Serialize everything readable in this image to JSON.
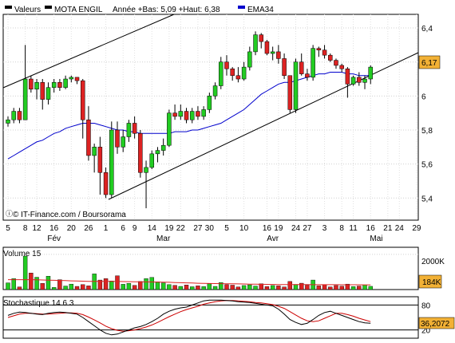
{
  "legend": {
    "item1": "Valeurs",
    "item2": "MOTA ENGIL",
    "range": "Année +Bas: 5,09 +Haut: 6,38",
    "item3": "EMA34"
  },
  "watermark": "© IT-Finance.com / Boursorama",
  "colors": {
    "up": "#22cc22",
    "down": "#dd2222",
    "ema": "#0000cc",
    "stoch_k": "#000000",
    "stoch_d": "#cc0000",
    "price_badge": "#f2b135",
    "value_badge": "#f2b135"
  },
  "chart_data": [
    {
      "type": "candlestick",
      "title": "MOTA ENGIL",
      "y_ticks": [
        "6,4",
        "6,2",
        "6",
        "5,8",
        "5,6",
        "5,4"
      ],
      "y_tick_values": [
        6.4,
        6.2,
        6.0,
        5.8,
        5.6,
        5.4
      ],
      "ylim": [
        5.27,
        6.48
      ],
      "last_price_label": "6,17",
      "last_price": 6.17,
      "x_day_labels": [
        "5",
        "8",
        "12",
        "16",
        "20",
        "26",
        "1",
        "6",
        "9",
        "14",
        "19",
        "22",
        "27",
        "30",
        "5",
        "10",
        "16",
        "19",
        "24",
        "27",
        "3",
        "8",
        "11",
        "16",
        "21",
        "24",
        "29"
      ],
      "x_day_index": [
        0,
        3,
        5,
        8,
        11,
        14,
        17,
        20,
        22,
        25,
        28,
        30,
        33,
        35,
        38,
        41,
        45,
        47,
        50,
        52,
        55,
        58,
        60,
        63,
        66,
        68,
        71
      ],
      "x_month_labels": [
        "Fév",
        "Mar",
        "Avr",
        "Mai"
      ],
      "x_month_index": [
        8,
        27,
        46,
        64
      ],
      "candles": [
        [
          5.84,
          5.88,
          5.82,
          5.86
        ],
        [
          5.86,
          5.93,
          5.84,
          5.91
        ],
        [
          5.91,
          5.93,
          5.84,
          5.86
        ],
        [
          5.86,
          6.3,
          5.86,
          6.1
        ],
        [
          6.1,
          6.12,
          6.02,
          6.04
        ],
        [
          6.04,
          6.1,
          5.98,
          6.08
        ],
        [
          6.08,
          6.1,
          5.92,
          5.98
        ],
        [
          5.98,
          6.08,
          5.95,
          6.05
        ],
        [
          6.05,
          6.1,
          6.02,
          6.08
        ],
        [
          6.08,
          6.1,
          6.03,
          6.05
        ],
        [
          6.05,
          6.12,
          6.04,
          6.1
        ],
        [
          6.1,
          6.12,
          6.08,
          6.11
        ],
        [
          6.11,
          6.11,
          6.07,
          6.09
        ],
        [
          6.09,
          6.1,
          5.75,
          5.86
        ],
        [
          5.86,
          5.94,
          5.62,
          5.65
        ],
        [
          5.65,
          5.72,
          5.55,
          5.7
        ],
        [
          5.7,
          5.76,
          5.42,
          5.55
        ],
        [
          5.55,
          5.58,
          5.4,
          5.42
        ],
        [
          5.42,
          5.85,
          5.4,
          5.8
        ],
        [
          5.8,
          5.85,
          5.66,
          5.7
        ],
        [
          5.7,
          5.8,
          5.67,
          5.76
        ],
        [
          5.76,
          5.86,
          5.73,
          5.84
        ],
        [
          5.84,
          5.88,
          5.75,
          5.78
        ],
        [
          5.78,
          5.8,
          5.52,
          5.55
        ],
        [
          5.55,
          5.62,
          5.34,
          5.58
        ],
        [
          5.58,
          5.68,
          5.57,
          5.66
        ],
        [
          5.66,
          5.7,
          5.61,
          5.68
        ],
        [
          5.68,
          5.75,
          5.65,
          5.71
        ],
        [
          5.71,
          5.92,
          5.7,
          5.9
        ],
        [
          5.9,
          5.95,
          5.86,
          5.88
        ],
        [
          5.88,
          5.95,
          5.86,
          5.91
        ],
        [
          5.91,
          5.93,
          5.84,
          5.86
        ],
        [
          5.86,
          5.93,
          5.84,
          5.91
        ],
        [
          5.91,
          5.94,
          5.86,
          5.88
        ],
        [
          5.88,
          5.94,
          5.86,
          5.92
        ],
        [
          5.92,
          6.02,
          5.9,
          6.0
        ],
        [
          6.0,
          6.08,
          5.98,
          6.06
        ],
        [
          6.06,
          6.23,
          6.04,
          6.2
        ],
        [
          6.2,
          6.24,
          6.12,
          6.16
        ],
        [
          6.16,
          6.17,
          6.09,
          6.12
        ],
        [
          6.12,
          6.17,
          6.08,
          6.1
        ],
        [
          6.1,
          6.2,
          6.09,
          6.17
        ],
        [
          6.17,
          6.29,
          6.15,
          6.26
        ],
        [
          6.26,
          6.38,
          6.24,
          6.36
        ],
        [
          6.36,
          6.37,
          6.28,
          6.32
        ],
        [
          6.32,
          6.33,
          6.24,
          6.25
        ],
        [
          6.25,
          6.29,
          6.21,
          6.26
        ],
        [
          6.26,
          6.3,
          6.19,
          6.22
        ],
        [
          6.22,
          6.25,
          6.1,
          6.12
        ],
        [
          6.12,
          6.12,
          5.9,
          5.92
        ],
        [
          5.92,
          6.22,
          5.9,
          6.2
        ],
        [
          6.2,
          6.25,
          6.12,
          6.13
        ],
        [
          6.13,
          6.16,
          6.09,
          6.11
        ],
        [
          6.11,
          6.3,
          6.09,
          6.28
        ],
        [
          6.28,
          6.29,
          6.23,
          6.27
        ],
        [
          6.27,
          6.3,
          6.22,
          6.24
        ],
        [
          6.24,
          6.25,
          6.2,
          6.21
        ],
        [
          6.21,
          6.22,
          6.16,
          6.18
        ],
        [
          6.18,
          6.19,
          6.14,
          6.16
        ],
        [
          6.16,
          6.17,
          5.99,
          6.07
        ],
        [
          6.07,
          6.12,
          6.06,
          6.11
        ],
        [
          6.11,
          6.14,
          6.06,
          6.08
        ],
        [
          6.08,
          6.12,
          6.04,
          6.1
        ],
        [
          6.1,
          6.18,
          6.07,
          6.17
        ]
      ],
      "ema34": [
        5.63,
        5.65,
        5.67,
        5.69,
        5.71,
        5.73,
        5.74,
        5.76,
        5.78,
        5.79,
        5.81,
        5.82,
        5.83,
        5.84,
        5.84,
        5.84,
        5.83,
        5.82,
        5.81,
        5.8,
        5.8,
        5.79,
        5.79,
        5.78,
        5.78,
        5.78,
        5.78,
        5.78,
        5.78,
        5.79,
        5.79,
        5.79,
        5.8,
        5.8,
        5.81,
        5.82,
        5.83,
        5.84,
        5.86,
        5.88,
        5.9,
        5.92,
        5.95,
        5.98,
        6.01,
        6.03,
        6.05,
        6.07,
        6.08,
        6.08,
        6.09,
        6.1,
        6.11,
        6.12,
        6.13,
        6.13,
        6.14,
        6.14,
        6.14,
        6.13,
        6.13,
        6.12,
        6.12,
        6.12
      ]
    },
    {
      "type": "bar",
      "title": "Volume 15",
      "y_tick": "2000K",
      "y_tick_value": 2000,
      "ylim": [
        0,
        2400
      ],
      "last_value_label": "184K",
      "values": [
        380,
        620,
        150,
        1900,
        940,
        700,
        350,
        760,
        120,
        560,
        200,
        310,
        180,
        280,
        210,
        890,
        540,
        620,
        490,
        780,
        300,
        350,
        240,
        460,
        620,
        690,
        440,
        380,
        280,
        240,
        180,
        260,
        160,
        210,
        170,
        330,
        180,
        400,
        280,
        250,
        150,
        230,
        270,
        200,
        330,
        170,
        230,
        210,
        150,
        460,
        290,
        360,
        250,
        540,
        210,
        280,
        150,
        230,
        190,
        310,
        170,
        200,
        260,
        184
      ],
      "ma_values": [
        560,
        560,
        560,
        560,
        560,
        555,
        545,
        535,
        525,
        515,
        505,
        495,
        485,
        475,
        465,
        460,
        460,
        460,
        460,
        460,
        455,
        450,
        445,
        440,
        435,
        430,
        425,
        420,
        410,
        400,
        390,
        380,
        370,
        360,
        350,
        345,
        340,
        335,
        330,
        325,
        320,
        315,
        310,
        305,
        300,
        295,
        290,
        287,
        285,
        283,
        281,
        280,
        279,
        278,
        277,
        276,
        275,
        274,
        273,
        272,
        271,
        270,
        269,
        268
      ]
    },
    {
      "type": "line",
      "title": "Stochastique 14 6 3",
      "ylim": [
        0,
        100
      ],
      "y_tick_values": [
        20,
        80
      ],
      "y_ticks": [
        "20",
        "80"
      ],
      "last_value_label": "36,2072",
      "k": [
        55,
        60,
        63,
        62,
        60,
        58,
        57,
        60,
        62,
        63,
        62,
        60,
        58,
        50,
        40,
        30,
        20,
        12,
        8,
        10,
        15,
        20,
        25,
        28,
        33,
        40,
        48,
        58,
        65,
        70,
        73,
        75,
        80,
        85,
        90,
        92,
        92,
        92,
        91,
        90,
        88,
        87,
        86,
        84,
        82,
        80,
        78,
        70,
        58,
        45,
        38,
        33,
        36,
        45,
        55,
        62,
        65,
        60,
        55,
        50,
        45,
        40,
        37,
        36
      ],
      "d": [
        50,
        54,
        58,
        60,
        60,
        59,
        58,
        58,
        59,
        60,
        61,
        61,
        60,
        57,
        51,
        44,
        37,
        29,
        23,
        19,
        17,
        18,
        20,
        23,
        27,
        32,
        38,
        45,
        52,
        58,
        64,
        69,
        73,
        77,
        82,
        85,
        88,
        90,
        91,
        91,
        90,
        89,
        88,
        86,
        85,
        83,
        81,
        77,
        72,
        64,
        56,
        48,
        42,
        40,
        42,
        48,
        54,
        60,
        60,
        57,
        53,
        48,
        44,
        40
      ]
    }
  ]
}
